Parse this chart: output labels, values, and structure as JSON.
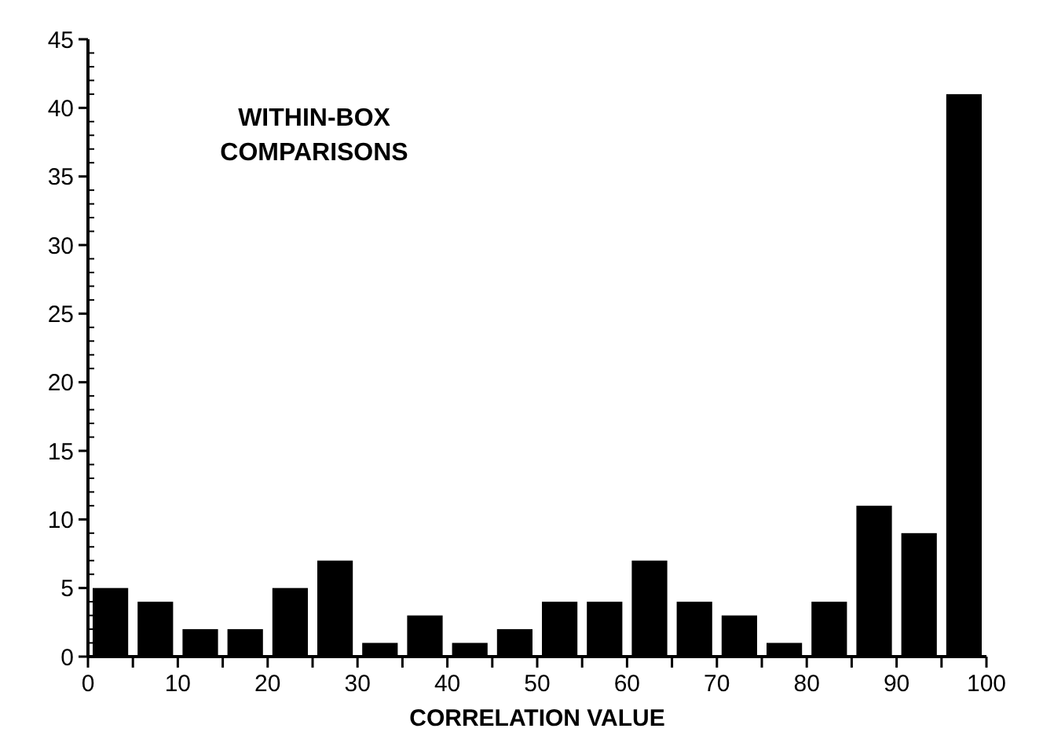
{
  "chart_data": {
    "type": "histogram",
    "title": "WITHIN-BOX COMPARISONS",
    "xlabel": "CORRELATION VALUE",
    "bins": [
      0,
      5,
      10,
      15,
      20,
      25,
      30,
      35,
      40,
      45,
      50,
      55,
      60,
      65,
      70,
      75,
      80,
      85,
      90,
      95,
      100
    ],
    "values": [
      5,
      4,
      2,
      2,
      5,
      7,
      1,
      3,
      1,
      2,
      4,
      4,
      7,
      4,
      3,
      1,
      4,
      11,
      9,
      41
    ],
    "color": "#000000",
    "xlim": [
      0,
      100
    ],
    "xticks": [
      0,
      {
        "value": 5,
        "label": null
      },
      10,
      {
        "value": 15,
        "label": null
      },
      20,
      {
        "value": 25,
        "label": null
      },
      30,
      {
        "value": 35,
        "label": null
      },
      40,
      {
        "value": 45,
        "label": null
      },
      50,
      {
        "value": 55,
        "label": null
      },
      60,
      {
        "value": 65,
        "label": null
      },
      70,
      {
        "value": 75,
        "label": null
      },
      80,
      {
        "value": 85,
        "label": null
      },
      90,
      {
        "value": 95,
        "label": null
      },
      100
    ],
    "ylim": [
      0,
      45
    ],
    "yticks": [
      0,
      5,
      10,
      15,
      20,
      25,
      30,
      35,
      40,
      45
    ],
    "grid": false
  }
}
